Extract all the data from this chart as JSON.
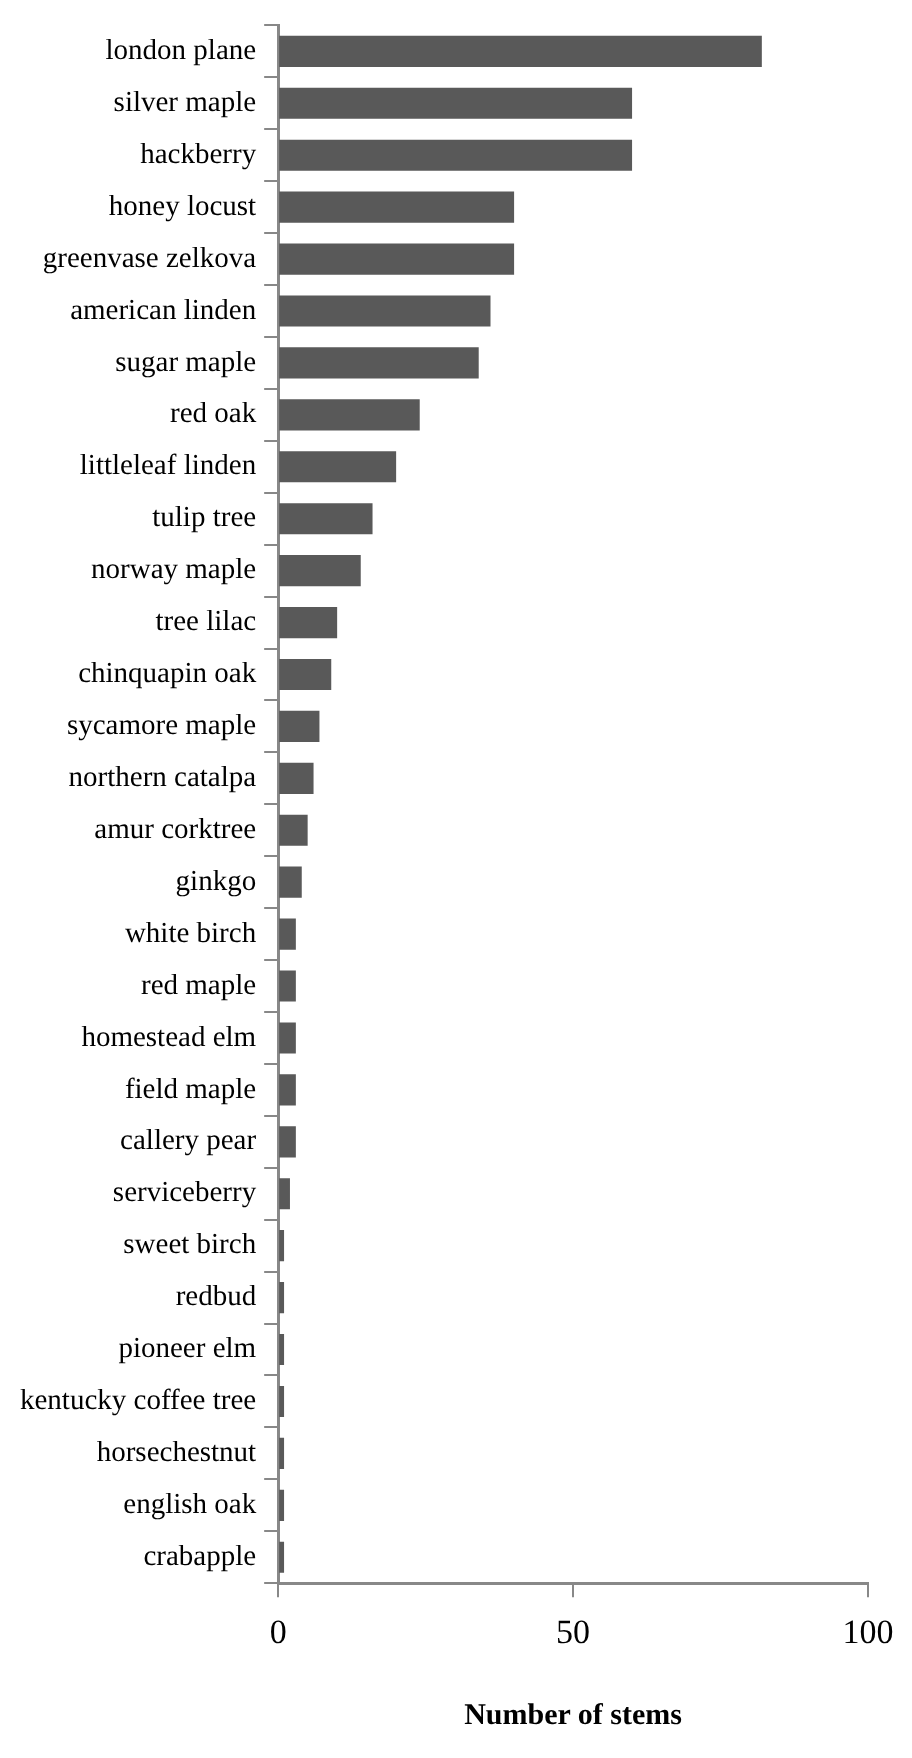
{
  "chart_data": {
    "type": "bar",
    "orientation": "horizontal",
    "xlabel": "Number of stems",
    "categories": [
      "london plane",
      "silver maple",
      "hackberry",
      "honey locust",
      "greenvase zelkova",
      "american linden",
      "sugar maple",
      "red oak",
      "littleleaf linden",
      "tulip tree",
      "norway maple",
      "tree lilac",
      "chinquapin oak",
      "sycamore maple",
      "northern catalpa",
      "amur corktree",
      "ginkgo",
      "white birch",
      "red maple",
      "homestead elm",
      "field maple",
      "callery pear",
      "serviceberry",
      "sweet birch",
      "redbud",
      "pioneer elm",
      "kentucky coffee tree",
      "horsechestnut",
      "english oak",
      "crabapple"
    ],
    "values": [
      82,
      60,
      60,
      40,
      40,
      36,
      34,
      24,
      20,
      16,
      14,
      10,
      9,
      7,
      6,
      5,
      4,
      3,
      3,
      3,
      3,
      3,
      2,
      1,
      1,
      1,
      1,
      1,
      1,
      1
    ],
    "color": "#595959",
    "xlim": [
      0,
      100
    ],
    "xticks": [
      0,
      50,
      100
    ]
  }
}
